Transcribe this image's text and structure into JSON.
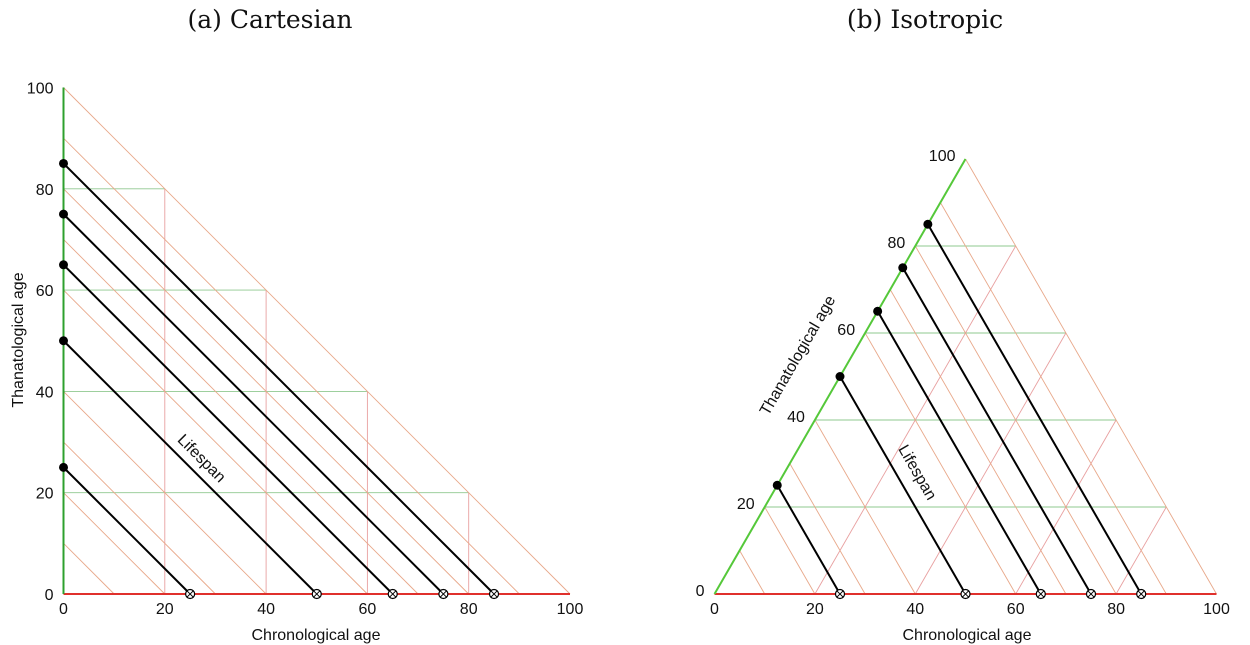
{
  "colors": {
    "chrono_axis": "#e0302c",
    "thanato_axis_cartesian": "#2ea02e",
    "thanato_axis_isotropic": "#55c83a",
    "grid_green": "#8fc88f",
    "grid_pink": "#e8a0a0",
    "grid_orange": "#e8a88a",
    "lifeline": "#000000"
  },
  "chart_data": [
    {
      "type": "diagram",
      "panel": "cartesian",
      "title": "(a) Cartesian",
      "xlabel": "Chronological age",
      "ylabel": "Thanatological age",
      "xlim": [
        0,
        100
      ],
      "ylim": [
        0,
        100
      ],
      "x_ticks": [
        "0",
        "20",
        "40",
        "60",
        "80",
        "100"
      ],
      "y_ticks": [
        "0",
        "20",
        "40",
        "60",
        "80",
        "100"
      ],
      "annotation": "Lifespan",
      "lifespans": [
        25,
        50,
        65,
        75,
        85
      ]
    },
    {
      "type": "diagram",
      "panel": "isotropic",
      "title": "(b) Isotropic",
      "xlabel": "Chronological age",
      "ylabel": "Thanatological age",
      "xlim": [
        0,
        100
      ],
      "ylim": [
        0,
        100
      ],
      "x_ticks": [
        "0",
        "20",
        "40",
        "60",
        "80",
        "100"
      ],
      "y_ticks": [
        "0",
        "20",
        "40",
        "60",
        "80",
        "100"
      ],
      "annotation": "Lifespan",
      "lifespans": [
        25,
        50,
        65,
        75,
        85
      ]
    }
  ]
}
